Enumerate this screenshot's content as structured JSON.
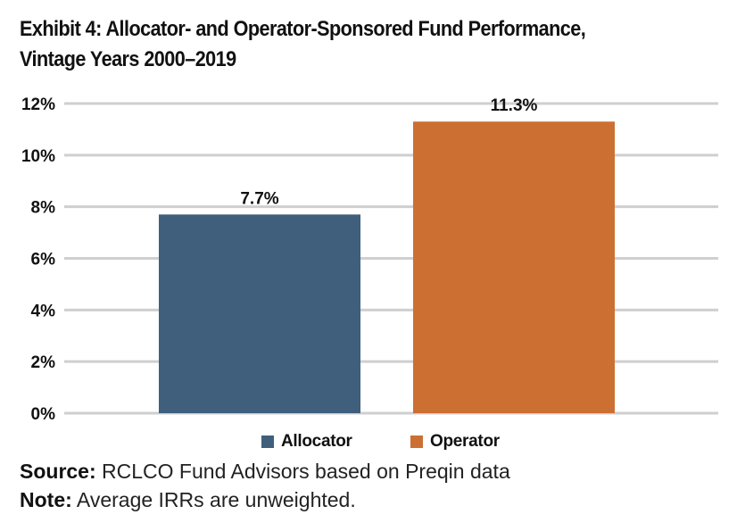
{
  "title_line1": "Exhibit 4: Allocator- and Operator-Sponsored Fund Performance,",
  "title_line2": "Vintage Years 2000–2019",
  "chart_data": {
    "type": "bar",
    "categories": [
      "Allocator",
      "Operator"
    ],
    "values": [
      7.7,
      11.3
    ],
    "value_labels": [
      "7.7%",
      "11.3%"
    ],
    "colors": [
      "#3f5f7d",
      "#cc6f33"
    ],
    "ylim": [
      0,
      12
    ],
    "yticks": [
      0,
      2,
      4,
      6,
      8,
      10,
      12
    ],
    "ytick_labels": [
      "0%",
      "2%",
      "4%",
      "6%",
      "8%",
      "10%",
      "12%"
    ],
    "grid": true,
    "legend_position": "bottom"
  },
  "legend": [
    {
      "label": "Allocator",
      "color": "#3f5f7d"
    },
    {
      "label": "Operator",
      "color": "#cc6f33"
    }
  ],
  "source_label": "Source:",
  "source_text": "RCLCO Fund Advisors based on Preqin data",
  "note_label": "Note:",
  "note_text": "Average IRRs are unweighted."
}
